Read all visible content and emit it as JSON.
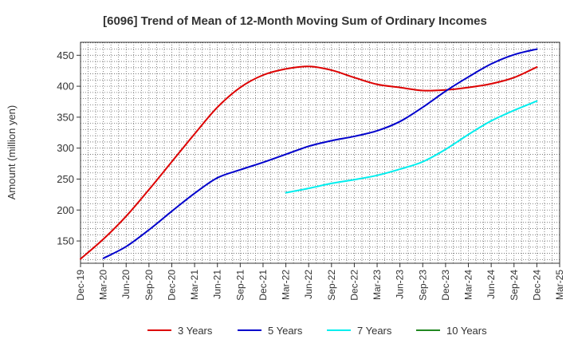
{
  "chart_data": {
    "type": "line",
    "title": "[6096]  Trend of Mean of 12-Month Moving Sum of Ordinary Incomes",
    "xlabel": "",
    "ylabel": "Amount (million yen)",
    "ylim": [
      114,
      471
    ],
    "yticks": [
      150,
      200,
      250,
      300,
      350,
      400,
      450
    ],
    "grid": true,
    "legend_position": "bottom",
    "categories": [
      "Dec-19",
      "Mar-20",
      "Jun-20",
      "Sep-20",
      "Dec-20",
      "Mar-21",
      "Jun-21",
      "Sep-21",
      "Dec-21",
      "Mar-22",
      "Jun-22",
      "Sep-22",
      "Dec-22",
      "Mar-23",
      "Jun-23",
      "Sep-23",
      "Dec-23",
      "Mar-24",
      "Jun-24",
      "Sep-24",
      "Dec-24",
      "Mar-25"
    ],
    "series": [
      {
        "name": "3 Years",
        "color": "#dd0000",
        "values": [
          121,
          153,
          190,
          233,
          278,
          323,
          366,
          398,
          418,
          428,
          432,
          426,
          414,
          403,
          398,
          393,
          394,
          398,
          404,
          414,
          431,
          null
        ]
      },
      {
        "name": "5 Years",
        "color": "#0000cc",
        "values": [
          null,
          122,
          141,
          168,
          198,
          227,
          252,
          265,
          277,
          290,
          303,
          312,
          319,
          328,
          343,
          366,
          392,
          415,
          436,
          451,
          460,
          null
        ]
      },
      {
        "name": "7 Years",
        "color": "#00eeee",
        "values": [
          null,
          null,
          null,
          null,
          null,
          null,
          null,
          null,
          null,
          228,
          235,
          243,
          249,
          256,
          266,
          278,
          298,
          322,
          344,
          361,
          376,
          null
        ]
      },
      {
        "name": "10 Years",
        "color": "#228822",
        "values": [
          null,
          null,
          null,
          null,
          null,
          null,
          null,
          null,
          null,
          null,
          null,
          null,
          null,
          null,
          null,
          null,
          null,
          null,
          null,
          null,
          null,
          null
        ]
      }
    ]
  }
}
